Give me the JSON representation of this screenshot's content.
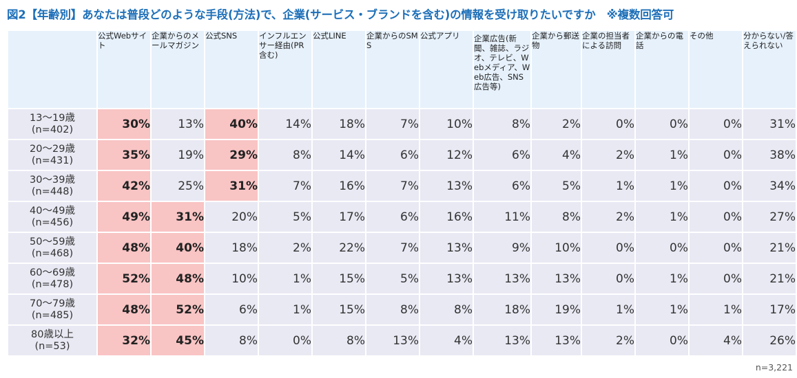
{
  "title": "図2【年齢別】あなたは普段どのような手段(方法)で、企業(サービス・ブランドを含む)の情報を受け取りたいですか　※複数回答可",
  "footnote": "n=3,221",
  "colors": {
    "title": "#1d6fb8",
    "header_bg": "#e6f1fb",
    "cell_bg": "#e8e9f3",
    "highlight_bg": "#f9c4c4"
  },
  "chart_data": {
    "type": "table",
    "columns": [
      "公式Webサイト",
      "企業からのメールマガジン",
      "公式SNS",
      "インフルエンサー経由(PR含む)",
      "公式LINE",
      "企業からのSMS",
      "公式アプリ",
      "企業広告(新聞、雑誌、ラジオ、テレビ、Webメディア、Web広告、SNS広告等)",
      "企業から郵送物",
      "企業の担当者による訪問",
      "企業からの電話",
      "その他",
      "分からない/答えられない"
    ],
    "rows": [
      {
        "label": "13〜19歳",
        "n": "(n=402)",
        "values": [
          "30%",
          "13%",
          "40%",
          "14%",
          "18%",
          "7%",
          "10%",
          "8%",
          "2%",
          "0%",
          "0%",
          "0%",
          "31%"
        ],
        "highlight": [
          true,
          false,
          true,
          false,
          false,
          false,
          false,
          false,
          false,
          false,
          false,
          false,
          false
        ]
      },
      {
        "label": "20〜29歳",
        "n": "(n=431)",
        "values": [
          "35%",
          "19%",
          "29%",
          "8%",
          "14%",
          "6%",
          "12%",
          "6%",
          "4%",
          "2%",
          "1%",
          "0%",
          "38%"
        ],
        "highlight": [
          true,
          false,
          true,
          false,
          false,
          false,
          false,
          false,
          false,
          false,
          false,
          false,
          false
        ]
      },
      {
        "label": "30〜39歳",
        "n": "(n=448)",
        "values": [
          "42%",
          "25%",
          "31%",
          "7%",
          "16%",
          "7%",
          "13%",
          "6%",
          "5%",
          "1%",
          "1%",
          "0%",
          "34%"
        ],
        "highlight": [
          true,
          false,
          true,
          false,
          false,
          false,
          false,
          false,
          false,
          false,
          false,
          false,
          false
        ]
      },
      {
        "label": "40〜49歳",
        "n": "(n=456)",
        "values": [
          "49%",
          "31%",
          "20%",
          "5%",
          "17%",
          "6%",
          "16%",
          "11%",
          "8%",
          "2%",
          "1%",
          "0%",
          "27%"
        ],
        "highlight": [
          true,
          true,
          false,
          false,
          false,
          false,
          false,
          false,
          false,
          false,
          false,
          false,
          false
        ]
      },
      {
        "label": "50〜59歳",
        "n": "(n=468)",
        "values": [
          "48%",
          "40%",
          "18%",
          "2%",
          "22%",
          "7%",
          "13%",
          "9%",
          "10%",
          "0%",
          "0%",
          "0%",
          "21%"
        ],
        "highlight": [
          true,
          true,
          false,
          false,
          false,
          false,
          false,
          false,
          false,
          false,
          false,
          false,
          false
        ]
      },
      {
        "label": "60〜69歳",
        "n": "(n=478)",
        "values": [
          "52%",
          "48%",
          "10%",
          "1%",
          "15%",
          "5%",
          "13%",
          "13%",
          "13%",
          "0%",
          "1%",
          "0%",
          "21%"
        ],
        "highlight": [
          true,
          true,
          false,
          false,
          false,
          false,
          false,
          false,
          false,
          false,
          false,
          false,
          false
        ]
      },
      {
        "label": "70〜79歳",
        "n": "(n=485)",
        "values": [
          "48%",
          "52%",
          "6%",
          "1%",
          "15%",
          "8%",
          "8%",
          "18%",
          "19%",
          "1%",
          "1%",
          "1%",
          "17%"
        ],
        "highlight": [
          true,
          true,
          false,
          false,
          false,
          false,
          false,
          false,
          false,
          false,
          false,
          false,
          false
        ]
      },
      {
        "label": "80歳以上",
        "n": "(n=53)",
        "values": [
          "32%",
          "45%",
          "8%",
          "0%",
          "8%",
          "13%",
          "4%",
          "13%",
          "13%",
          "2%",
          "0%",
          "4%",
          "26%"
        ],
        "highlight": [
          true,
          true,
          false,
          false,
          false,
          false,
          false,
          false,
          false,
          false,
          false,
          false,
          false
        ]
      }
    ]
  }
}
